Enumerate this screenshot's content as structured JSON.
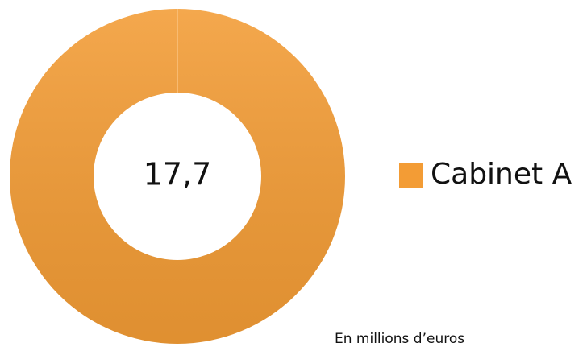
{
  "chart_data": {
    "type": "pie",
    "donut": true,
    "categories": [
      "Cabinet A"
    ],
    "values": [
      17.7
    ],
    "value_labels": [
      "17,7"
    ],
    "colors": [
      "#f39c35"
    ],
    "legend": "right",
    "annotation": "En millions d’euros"
  }
}
